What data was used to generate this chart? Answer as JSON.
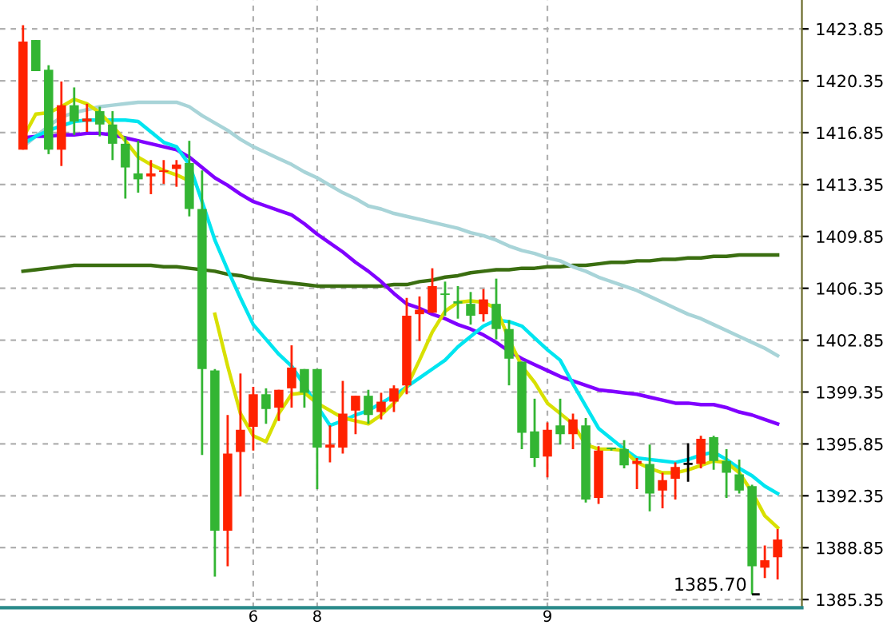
{
  "chart_data": {
    "type": "candlestick",
    "categories": [
      null,
      null,
      null,
      null,
      null,
      null,
      null,
      null,
      null,
      null,
      null,
      null,
      null,
      null,
      null,
      null,
      null,
      null,
      "6",
      null,
      null,
      null,
      null,
      "8",
      null,
      null,
      null,
      null,
      null,
      null,
      null,
      null,
      null,
      null,
      null,
      null,
      null,
      null,
      null,
      null,
      null,
      "9",
      null,
      null,
      null,
      null,
      null,
      null,
      null,
      null,
      null,
      null,
      null,
      null,
      null,
      null,
      null,
      null,
      null,
      null
    ],
    "ohlc": [
      [
        1415.7,
        1424.1,
        1415.7,
        1423.0
      ],
      [
        1423.1,
        1423.1,
        1421.0,
        1421.0
      ],
      [
        1421.1,
        1421.4,
        1415.4,
        1415.7
      ],
      [
        1415.7,
        1420.3,
        1414.6,
        1418.7
      ],
      [
        1418.7,
        1419.9,
        1416.7,
        1417.6
      ],
      [
        1417.6,
        1418.8,
        1416.9,
        1417.8
      ],
      [
        1418.3,
        1418.6,
        1416.6,
        1417.4
      ],
      [
        1417.4,
        1418.3,
        1415.0,
        1416.1
      ],
      [
        1416.1,
        1416.6,
        1412.4,
        1414.5
      ],
      [
        1414.1,
        1416.3,
        1412.8,
        1413.7
      ],
      [
        1413.9,
        1415.0,
        1412.7,
        1414.1
      ],
      [
        1414.2,
        1415.0,
        1413.4,
        1414.3
      ],
      [
        1414.4,
        1415.0,
        1413.2,
        1414.7
      ],
      [
        1414.8,
        1416.3,
        1411.2,
        1411.7
      ],
      [
        1411.7,
        1414.3,
        1395.1,
        1400.9
      ],
      [
        1400.8,
        1400.9,
        1386.9,
        1390.0
      ],
      [
        1390.0,
        1397.8,
        1387.6,
        1395.2
      ],
      [
        1395.3,
        1400.6,
        1392.3,
        1396.8
      ],
      [
        1397.0,
        1399.7,
        1395.4,
        1399.2
      ],
      [
        1399.2,
        1399.6,
        1397.2,
        1398.2
      ],
      [
        1398.3,
        1399.5,
        1397.4,
        1399.5
      ],
      [
        1399.6,
        1402.5,
        1398.3,
        1401.0
      ],
      [
        1400.9,
        1400.9,
        1398.3,
        1399.3
      ],
      [
        1400.9,
        1400.9,
        1392.8,
        1395.6
      ],
      [
        1395.6,
        1397.1,
        1394.6,
        1395.8
      ],
      [
        1395.6,
        1400.1,
        1395.2,
        1397.9
      ],
      [
        1398.1,
        1399.1,
        1396.5,
        1399.1
      ],
      [
        1399.1,
        1399.5,
        1397.2,
        1397.8
      ],
      [
        1398.0,
        1399.3,
        1397.5,
        1398.7
      ],
      [
        1398.7,
        1399.8,
        1398.0,
        1399.6
      ],
      [
        1399.8,
        1405.7,
        1399.2,
        1404.5
      ],
      [
        1404.6,
        1405.8,
        1402.8,
        1404.9
      ],
      [
        1404.7,
        1407.7,
        1404.7,
        1406.5
      ],
      [
        1406.0,
        1406.8,
        1404.5,
        1405.9
      ],
      [
        1405.4,
        1406.5,
        1404.3,
        1405.4
      ],
      [
        1405.3,
        1406.1,
        1403.9,
        1404.5
      ],
      [
        1404.6,
        1406.3,
        1404.1,
        1405.6
      ],
      [
        1405.3,
        1407.0,
        1402.9,
        1403.6
      ],
      [
        1403.6,
        1404.2,
        1399.8,
        1401.6
      ],
      [
        1401.4,
        1401.4,
        1395.5,
        1396.6
      ],
      [
        1396.7,
        1398.9,
        1394.3,
        1394.9
      ],
      [
        1395.0,
        1397.3,
        1393.6,
        1396.8
      ],
      [
        1397.1,
        1398.9,
        1395.8,
        1396.5
      ],
      [
        1396.5,
        1397.9,
        1395.5,
        1397.5
      ],
      [
        1397.1,
        1397.6,
        1391.9,
        1392.1
      ],
      [
        1392.2,
        1395.7,
        1391.8,
        1395.4
      ],
      [
        1395.6,
        1395.6,
        1395.4,
        1395.5
      ],
      [
        1395.5,
        1396.1,
        1394.2,
        1394.4
      ],
      [
        1394.5,
        1394.9,
        1392.8,
        1394.7
      ],
      [
        1394.5,
        1395.8,
        1391.3,
        1392.5
      ],
      [
        1392.7,
        1393.9,
        1391.5,
        1393.4
      ],
      [
        1393.5,
        1394.6,
        1392.1,
        1394.3
      ],
      [
        1394.5,
        1395.9,
        1393.3,
        1394.5
      ],
      [
        1394.5,
        1396.4,
        1394.2,
        1396.2
      ],
      [
        1396.3,
        1396.4,
        1394.1,
        1394.7
      ],
      [
        1394.7,
        1395.5,
        1392.2,
        1393.9
      ],
      [
        1393.8,
        1394.8,
        1392.5,
        1392.7
      ],
      [
        1393.0,
        1393.1,
        1385.7,
        1387.6
      ],
      [
        1387.5,
        1389.0,
        1386.8,
        1388.0
      ],
      [
        1388.2,
        1390.1,
        1386.7,
        1389.4
      ]
    ],
    "colors": [
      "#ff2200",
      "#33b533",
      "#33b533",
      "#ff2200",
      "#33b533",
      "#ff2200",
      "#33b533",
      "#33b533",
      "#33b533",
      "#33b533",
      "#ff2200",
      "#ff2200",
      "#ff2200",
      "#33b533",
      "#33b533",
      "#33b533",
      "#ff2200",
      "#ff2200",
      "#ff2200",
      "#33b533",
      "#ff2200",
      "#ff2200",
      "#33b533",
      "#33b533",
      "#ff2200",
      "#ff2200",
      "#ff2200",
      "#33b533",
      "#ff2200",
      "#ff2200",
      "#ff2200",
      "#ff2200",
      "#ff2200",
      "#33b533",
      "#33b533",
      "#33b533",
      "#ff2200",
      "#33b533",
      "#33b533",
      "#33b533",
      "#33b533",
      "#ff2200",
      "#33b533",
      "#ff2200",
      "#33b533",
      "#ff2200",
      "#33b533",
      "#33b533",
      "#ff2200",
      "#33b533",
      "#ff2200",
      "#ff2200",
      "#000000",
      "#ff2200",
      "#33b533",
      "#33b533",
      "#33b533",
      "#33b533",
      "#ff2200",
      "#ff2200"
    ],
    "series": [
      {
        "type": "line",
        "color": "#3a6e10",
        "values": [
          1407.5,
          1407.6,
          1407.7,
          1407.8,
          1407.9,
          1407.9,
          1407.9,
          1407.9,
          1407.9,
          1407.9,
          1407.9,
          1407.8,
          1407.8,
          1407.7,
          1407.6,
          1407.5,
          1407.3,
          1407.2,
          1407.0,
          1406.9,
          1406.8,
          1406.7,
          1406.6,
          1406.5,
          1406.5,
          1406.5,
          1406.5,
          1406.5,
          1406.5,
          1406.6,
          1406.6,
          1406.8,
          1406.9,
          1407.1,
          1407.2,
          1407.4,
          1407.5,
          1407.6,
          1407.6,
          1407.7,
          1407.7,
          1407.8,
          1407.8,
          1407.9,
          1407.9,
          1408.0,
          1408.1,
          1408.1,
          1408.2,
          1408.2,
          1408.3,
          1408.3,
          1408.4,
          1408.4,
          1408.5,
          1408.5,
          1408.6,
          1408.6,
          1408.6,
          1408.6
        ]
      },
      {
        "type": "line",
        "color": "#a8d4d8",
        "values": [
          1415.9,
          1416.6,
          1417.3,
          1417.9,
          1418.2,
          1418.4,
          1418.6,
          1418.7,
          1418.8,
          1418.9,
          1418.9,
          1418.9,
          1418.9,
          1418.6,
          1418.0,
          1417.5,
          1417.0,
          1416.4,
          1415.9,
          1415.5,
          1415.1,
          1414.7,
          1414.2,
          1413.8,
          1413.3,
          1412.8,
          1412.4,
          1411.9,
          1411.7,
          1411.4,
          1411.2,
          1411.0,
          1410.8,
          1410.6,
          1410.4,
          1410.1,
          1409.9,
          1409.6,
          1409.2,
          1408.9,
          1408.7,
          1408.4,
          1408.2,
          1407.8,
          1407.5,
          1407.1,
          1406.8,
          1406.5,
          1406.2,
          1405.8,
          1405.4,
          1405.0,
          1404.6,
          1404.3,
          1403.9,
          1403.5,
          1403.1,
          1402.7,
          1402.3,
          1401.8
        ]
      },
      {
        "type": "line",
        "color": "#8000ff",
        "values": [
          1416.5,
          1416.6,
          1416.6,
          1416.7,
          1416.7,
          1416.8,
          1416.8,
          1416.7,
          1416.5,
          1416.3,
          1416.1,
          1415.9,
          1415.7,
          1415.2,
          1414.5,
          1413.8,
          1413.3,
          1412.7,
          1412.2,
          1411.9,
          1411.6,
          1411.3,
          1410.7,
          1410.0,
          1409.4,
          1408.8,
          1408.1,
          1407.5,
          1406.8,
          1406.0,
          1405.3,
          1405.0,
          1404.6,
          1404.3,
          1403.9,
          1403.6,
          1403.2,
          1402.7,
          1402.1,
          1401.6,
          1401.2,
          1400.8,
          1400.4,
          1400.1,
          1399.8,
          1399.5,
          1399.4,
          1399.3,
          1399.2,
          1399.0,
          1398.8,
          1398.6,
          1398.6,
          1398.5,
          1398.5,
          1398.3,
          1398.0,
          1397.8,
          1397.5,
          1397.2
        ]
      },
      {
        "type": "line",
        "color": "#00e5f0",
        "values": [
          1416.1,
          1416.6,
          1417.0,
          1417.3,
          1417.6,
          1417.7,
          1417.7,
          1417.7,
          1417.7,
          1417.6,
          1416.9,
          1416.2,
          1415.9,
          1414.7,
          1412.2,
          1409.6,
          1407.6,
          1405.7,
          1403.9,
          1402.9,
          1401.9,
          1401.1,
          1399.8,
          1398.4,
          1397.1,
          1397.4,
          1397.8,
          1398.1,
          1398.6,
          1399.1,
          1399.7,
          1400.3,
          1400.9,
          1401.5,
          1402.4,
          1403.1,
          1403.8,
          1404.2,
          1404.1,
          1403.8,
          1403.0,
          1402.2,
          1401.5,
          1399.9,
          1398.4,
          1396.9,
          1396.2,
          1395.5,
          1394.9,
          1394.8,
          1394.7,
          1394.6,
          1394.8,
          1395.1,
          1395.3,
          1394.8,
          1394.2,
          1393.7,
          1393.0,
          1392.5
        ]
      },
      {
        "type": "line",
        "color": "#d8e000",
        "values": [
          1416.5,
          1418.1,
          1418.2,
          1418.6,
          1419.1,
          1418.8,
          1418.2,
          1417.3,
          1416.3,
          1415.2,
          1414.7,
          1414.3,
          1414.0,
          1413.6,
          null,
          1404.6,
          1401.1,
          1397.9,
          1396.4,
          1396.0,
          1397.9,
          1399.2,
          1399.3,
          1398.6,
          1398.1,
          1397.6,
          1397.4,
          1397.2,
          1397.8,
          1398.6,
          1399.7,
          1401.5,
          1403.4,
          1404.8,
          1405.4,
          1405.5,
          1405.4,
          1405.0,
          1402.9,
          1401.1,
          1400.0,
          1398.6,
          1397.9,
          1397.2,
          1395.8,
          1395.5,
          1395.5,
          1395.4,
          1394.6,
          1394.2,
          1393.9,
          1393.9,
          1394.1,
          1394.4,
          1394.7,
          1394.6,
          1393.9,
          1392.6,
          1391.0,
          1390.2
        ]
      }
    ],
    "ylim": [
      1384.8,
      1425.8
    ],
    "yticks": [
      1385.35,
      1388.85,
      1392.35,
      1395.85,
      1399.35,
      1402.85,
      1406.35,
      1409.85,
      1413.35,
      1416.85,
      1420.35,
      1423.85
    ],
    "grid": true,
    "legend": false,
    "annotations": [
      "1385.70"
    ]
  }
}
